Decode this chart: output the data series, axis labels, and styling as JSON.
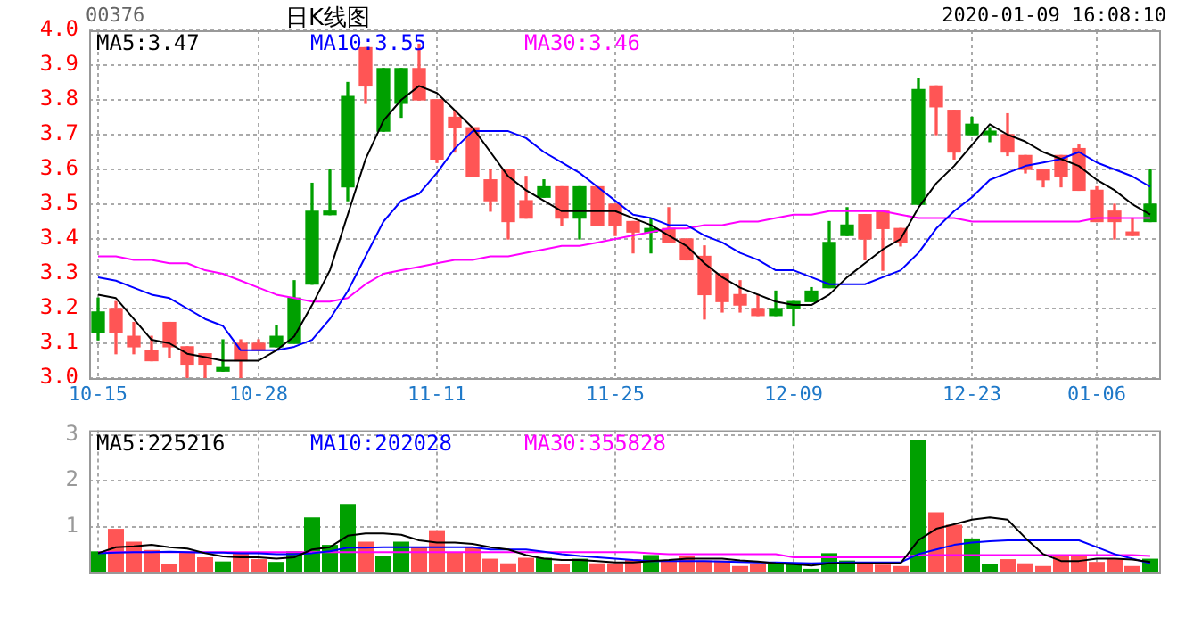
{
  "chart_data": [
    {
      "type": "candlestick",
      "title": "日K线图",
      "annotations": [
        "00376",
        "2020-01-09 16:08:10"
      ],
      "categories": [
        "10-15",
        null,
        null,
        null,
        null,
        null,
        null,
        null,
        null,
        "10-28",
        null,
        null,
        null,
        null,
        null,
        null,
        null,
        null,
        null,
        "11-11",
        null,
        null,
        null,
        null,
        null,
        null,
        null,
        null,
        null,
        "11-25",
        null,
        null,
        null,
        null,
        null,
        null,
        null,
        null,
        null,
        "12-09",
        null,
        null,
        null,
        null,
        null,
        null,
        null,
        null,
        null,
        "12-23",
        null,
        null,
        null,
        null,
        null,
        null,
        "01-06",
        null,
        null,
        null
      ],
      "ohlc": [
        [
          3.19,
          3.23,
          3.11,
          3.13
        ],
        [
          3.13,
          3.22,
          3.07,
          3.2
        ],
        [
          3.09,
          3.16,
          3.07,
          3.12
        ],
        [
          3.05,
          3.12,
          3.05,
          3.08
        ],
        [
          3.09,
          3.16,
          3.06,
          3.16
        ],
        [
          3.04,
          3.09,
          3.0,
          3.09
        ],
        [
          3.04,
          3.07,
          3.0,
          3.07
        ],
        [
          3.03,
          3.11,
          3.02,
          3.02
        ],
        [
          3.05,
          3.11,
          3.0,
          3.1
        ],
        [
          3.08,
          3.11,
          3.08,
          3.1
        ],
        [
          3.12,
          3.15,
          3.09,
          3.09
        ],
        [
          3.23,
          3.28,
          3.1,
          3.1
        ],
        [
          3.48,
          3.56,
          3.27,
          3.27
        ],
        [
          3.48,
          3.6,
          3.47,
          3.47
        ],
        [
          3.81,
          3.85,
          3.51,
          3.55
        ],
        [
          3.84,
          3.95,
          3.79,
          3.95
        ],
        [
          3.89,
          3.89,
          3.71,
          3.71
        ],
        [
          3.89,
          3.89,
          3.75,
          3.79
        ],
        [
          3.8,
          3.96,
          3.8,
          3.89
        ],
        [
          3.63,
          3.8,
          3.62,
          3.8
        ],
        [
          3.72,
          3.77,
          3.65,
          3.75
        ],
        [
          3.58,
          3.72,
          3.58,
          3.72
        ],
        [
          3.51,
          3.6,
          3.48,
          3.57
        ],
        [
          3.45,
          3.6,
          3.4,
          3.6
        ],
        [
          3.46,
          3.58,
          3.46,
          3.51
        ],
        [
          3.55,
          3.57,
          3.52,
          3.52
        ],
        [
          3.46,
          3.55,
          3.44,
          3.55
        ],
        [
          3.55,
          3.55,
          3.4,
          3.46
        ],
        [
          3.44,
          3.55,
          3.44,
          3.55
        ],
        [
          3.44,
          3.5,
          3.41,
          3.5
        ],
        [
          3.42,
          3.45,
          3.36,
          3.45
        ],
        [
          3.43,
          3.46,
          3.36,
          3.42
        ],
        [
          3.39,
          3.49,
          3.39,
          3.43
        ],
        [
          3.34,
          3.4,
          3.34,
          3.4
        ],
        [
          3.24,
          3.38,
          3.17,
          3.35
        ],
        [
          3.22,
          3.3,
          3.19,
          3.3
        ],
        [
          3.21,
          3.28,
          3.19,
          3.24
        ],
        [
          3.18,
          3.24,
          3.18,
          3.2
        ],
        [
          3.2,
          3.25,
          3.18,
          3.18
        ],
        [
          3.22,
          3.22,
          3.15,
          3.2
        ],
        [
          3.25,
          3.26,
          3.22,
          3.22
        ],
        [
          3.39,
          3.45,
          3.26,
          3.26
        ],
        [
          3.44,
          3.49,
          3.41,
          3.41
        ],
        [
          3.4,
          3.47,
          3.34,
          3.47
        ],
        [
          3.43,
          3.48,
          3.31,
          3.48
        ],
        [
          3.39,
          3.43,
          3.38,
          3.43
        ],
        [
          3.83,
          3.86,
          3.5,
          3.5
        ],
        [
          3.78,
          3.84,
          3.7,
          3.84
        ],
        [
          3.65,
          3.77,
          3.63,
          3.77
        ],
        [
          3.73,
          3.75,
          3.7,
          3.7
        ],
        [
          3.71,
          3.72,
          3.68,
          3.7
        ],
        [
          3.65,
          3.76,
          3.64,
          3.7
        ],
        [
          3.6,
          3.64,
          3.59,
          3.64
        ],
        [
          3.57,
          3.6,
          3.55,
          3.6
        ],
        [
          3.58,
          3.64,
          3.55,
          3.64
        ],
        [
          3.54,
          3.67,
          3.54,
          3.66
        ],
        [
          3.45,
          3.55,
          3.45,
          3.54
        ],
        [
          3.45,
          3.5,
          3.4,
          3.48
        ],
        [
          3.41,
          3.46,
          3.41,
          3.42
        ],
        [
          3.5,
          3.6,
          3.45,
          3.45
        ]
      ],
      "colors": [
        "#00a000",
        "#ff5555",
        "#ff5555",
        "#ff5555",
        "#ff5555",
        "#ff5555",
        "#ff5555",
        "#00a000",
        "#ff5555",
        "#ff5555",
        "#00a000",
        "#00a000",
        "#00a000",
        "#00a000",
        "#00a000",
        "#ff5555",
        "#00a000",
        "#00a000",
        "#ff5555",
        "#ff5555",
        "#ff5555",
        "#ff5555",
        "#ff5555",
        "#ff5555",
        "#ff5555",
        "#00a000",
        "#ff5555",
        "#00a000",
        "#ff5555",
        "#ff5555",
        "#ff5555",
        "#00a000",
        "#ff5555",
        "#ff5555",
        "#ff5555",
        "#ff5555",
        "#ff5555",
        "#ff5555",
        "#00a000",
        "#00a000",
        "#00a000",
        "#00a000",
        "#00a000",
        "#ff5555",
        "#ff5555",
        "#ff5555",
        "#00a000",
        "#ff5555",
        "#ff5555",
        "#00a000",
        "#00a000",
        "#ff5555",
        "#ff5555",
        "#ff5555",
        "#ff5555",
        "#ff5555",
        "#ff5555",
        "#ff5555",
        "#ff5555",
        "#00a000"
      ],
      "series": [
        {
          "type": "line",
          "name": "MA5:3.47",
          "color": "#000000",
          "values": [
            3.24,
            3.23,
            3.17,
            3.11,
            3.1,
            3.07,
            3.06,
            3.05,
            3.05,
            3.05,
            3.08,
            3.12,
            3.21,
            3.31,
            3.47,
            3.63,
            3.74,
            3.8,
            3.84,
            3.82,
            3.77,
            3.72,
            3.65,
            3.58,
            3.54,
            3.51,
            3.48,
            3.48,
            3.48,
            3.48,
            3.46,
            3.44,
            3.41,
            3.38,
            3.33,
            3.29,
            3.26,
            3.24,
            3.22,
            3.21,
            3.21,
            3.24,
            3.29,
            3.33,
            3.37,
            3.4,
            3.49,
            3.56,
            3.61,
            3.67,
            3.73,
            3.7,
            3.68,
            3.65,
            3.63,
            3.61,
            3.57,
            3.54,
            3.5,
            3.47
          ]
        },
        {
          "type": "line",
          "name": "MA10:3.55",
          "color": "#0000ff",
          "values": [
            3.29,
            3.28,
            3.26,
            3.24,
            3.23,
            3.2,
            3.17,
            3.15,
            3.08,
            3.08,
            3.08,
            3.09,
            3.11,
            3.17,
            3.25,
            3.35,
            3.45,
            3.51,
            3.53,
            3.59,
            3.66,
            3.71,
            3.71,
            3.71,
            3.69,
            3.65,
            3.62,
            3.59,
            3.55,
            3.51,
            3.47,
            3.46,
            3.44,
            3.44,
            3.41,
            3.39,
            3.36,
            3.34,
            3.31,
            3.31,
            3.29,
            3.27,
            3.27,
            3.27,
            3.29,
            3.31,
            3.36,
            3.43,
            3.48,
            3.52,
            3.57,
            3.59,
            3.61,
            3.62,
            3.63,
            3.65,
            3.62,
            3.6,
            3.58,
            3.55
          ]
        },
        {
          "type": "line",
          "name": "MA30:3.46",
          "color": "#ff00ff",
          "values": [
            3.35,
            3.35,
            3.34,
            3.34,
            3.33,
            3.33,
            3.31,
            3.3,
            3.28,
            3.26,
            3.24,
            3.23,
            3.22,
            3.22,
            3.23,
            3.27,
            3.3,
            3.31,
            3.32,
            3.33,
            3.34,
            3.34,
            3.35,
            3.35,
            3.36,
            3.37,
            3.38,
            3.38,
            3.39,
            3.4,
            3.41,
            3.42,
            3.43,
            3.43,
            3.44,
            3.44,
            3.45,
            3.45,
            3.46,
            3.47,
            3.47,
            3.48,
            3.48,
            3.48,
            3.48,
            3.47,
            3.46,
            3.46,
            3.46,
            3.45,
            3.45,
            3.45,
            3.45,
            3.45,
            3.45,
            3.45,
            3.46,
            3.46,
            3.46,
            3.46
          ]
        }
      ],
      "ylim": [
        3.0,
        4.0
      ],
      "yticks": [
        {
          "value": 3.0,
          "label": "3.0"
        },
        3.1,
        3.2,
        3.3,
        3.4,
        3.5,
        3.6,
        3.7,
        3.8,
        3.9,
        {
          "value": 4.0,
          "label": "4.0"
        }
      ],
      "grid": true,
      "legend": "top left"
    },
    {
      "type": "bar",
      "categories": [
        null,
        null,
        null,
        null,
        null,
        null,
        null,
        null,
        null,
        null,
        null,
        null,
        null,
        null,
        null,
        null,
        null,
        null,
        null,
        null,
        null,
        null,
        null,
        null,
        null,
        null,
        null,
        null,
        null,
        null,
        null,
        null,
        null,
        null,
        null,
        null,
        null,
        null,
        null,
        null,
        null,
        null,
        null,
        null,
        null,
        null,
        null,
        null,
        null,
        null,
        null,
        null,
        null,
        null,
        null,
        null,
        null,
        null,
        null,
        null
      ],
      "series": [
        {
          "type": "bar",
          "values": [
            0.46,
            0.95,
            0.67,
            0.49,
            0.18,
            0.44,
            0.33,
            0.24,
            0.42,
            0.29,
            0.23,
            0.46,
            1.2,
            0.6,
            1.49,
            0.67,
            0.35,
            0.67,
            0.56,
            0.92,
            0.43,
            0.56,
            0.3,
            0.2,
            0.32,
            0.32,
            0.18,
            0.3,
            0.2,
            0.2,
            0.29,
            0.38,
            0.26,
            0.35,
            0.26,
            0.26,
            0.14,
            0.2,
            0.2,
            0.18,
            0.08,
            0.42,
            0.26,
            0.2,
            0.17,
            0.14,
            2.88,
            1.31,
            1.04,
            0.74,
            0.18,
            0.29,
            0.2,
            0.14,
            0.38,
            0.38,
            0.23,
            0.3,
            0.14,
            0.3
          ],
          "colors": [
            "#00a000",
            "#ff5555",
            "#ff5555",
            "#ff5555",
            "#ff5555",
            "#ff5555",
            "#ff5555",
            "#00a000",
            "#ff5555",
            "#ff5555",
            "#00a000",
            "#00a000",
            "#00a000",
            "#00a000",
            "#00a000",
            "#ff5555",
            "#00a000",
            "#00a000",
            "#ff5555",
            "#ff5555",
            "#ff5555",
            "#ff5555",
            "#ff5555",
            "#ff5555",
            "#ff5555",
            "#00a000",
            "#ff5555",
            "#00a000",
            "#ff5555",
            "#ff5555",
            "#ff5555",
            "#00a000",
            "#ff5555",
            "#ff5555",
            "#ff5555",
            "#ff5555",
            "#ff5555",
            "#ff5555",
            "#00a000",
            "#00a000",
            "#00a000",
            "#00a000",
            "#00a000",
            "#ff5555",
            "#ff5555",
            "#ff5555",
            "#00a000",
            "#ff5555",
            "#ff5555",
            "#00a000",
            "#00a000",
            "#ff5555",
            "#ff5555",
            "#ff5555",
            "#ff5555",
            "#ff5555",
            "#ff5555",
            "#ff5555",
            "#ff5555",
            "#00a000"
          ]
        },
        {
          "type": "line",
          "name": "MA5:225216",
          "color": "#000000",
          "values": [
            0.42,
            0.55,
            0.57,
            0.6,
            0.55,
            0.52,
            0.42,
            0.35,
            0.33,
            0.33,
            0.3,
            0.33,
            0.5,
            0.55,
            0.8,
            0.85,
            0.85,
            0.82,
            0.7,
            0.65,
            0.65,
            0.62,
            0.55,
            0.5,
            0.38,
            0.3,
            0.27,
            0.27,
            0.25,
            0.22,
            0.22,
            0.25,
            0.27,
            0.3,
            0.3,
            0.3,
            0.26,
            0.24,
            0.2,
            0.18,
            0.15,
            0.2,
            0.2,
            0.2,
            0.2,
            0.2,
            0.7,
            0.95,
            1.05,
            1.15,
            1.2,
            1.15,
            0.75,
            0.4,
            0.25,
            0.25,
            0.3,
            0.3,
            0.28,
            0.23
          ]
        },
        {
          "type": "line",
          "name": "MA10:202028",
          "color": "#0000ff",
          "values": [
            0.42,
            0.43,
            0.44,
            0.44,
            0.45,
            0.44,
            0.43,
            0.43,
            0.42,
            0.42,
            0.4,
            0.4,
            0.42,
            0.46,
            0.54,
            0.54,
            0.55,
            0.55,
            0.55,
            0.55,
            0.55,
            0.55,
            0.5,
            0.5,
            0.5,
            0.45,
            0.4,
            0.36,
            0.33,
            0.3,
            0.27,
            0.25,
            0.25,
            0.25,
            0.25,
            0.24,
            0.23,
            0.22,
            0.22,
            0.21,
            0.2,
            0.21,
            0.22,
            0.22,
            0.22,
            0.22,
            0.4,
            0.5,
            0.6,
            0.65,
            0.68,
            0.7,
            0.7,
            0.7,
            0.7,
            0.7,
            0.55,
            0.4,
            0.3,
            0.2
          ]
        },
        {
          "type": "line",
          "name": "MA30:355828",
          "color": "#ff00ff",
          "values": [
            0.44,
            0.44,
            0.44,
            0.44,
            0.44,
            0.44,
            0.44,
            0.44,
            0.44,
            0.44,
            0.44,
            0.44,
            0.44,
            0.44,
            0.44,
            0.44,
            0.44,
            0.44,
            0.44,
            0.44,
            0.44,
            0.44,
            0.44,
            0.44,
            0.44,
            0.44,
            0.44,
            0.44,
            0.44,
            0.44,
            0.44,
            0.42,
            0.4,
            0.4,
            0.4,
            0.4,
            0.4,
            0.4,
            0.4,
            0.33,
            0.33,
            0.33,
            0.33,
            0.33,
            0.33,
            0.33,
            0.38,
            0.38,
            0.38,
            0.38,
            0.38,
            0.38,
            0.38,
            0.38,
            0.38,
            0.38,
            0.38,
            0.38,
            0.38,
            0.36
          ]
        }
      ],
      "ylim": [
        0,
        3.1
      ],
      "yticks": [
        1,
        2,
        3
      ],
      "grid": true,
      "legend": "top left",
      "tick_labels": "y"
    }
  ]
}
